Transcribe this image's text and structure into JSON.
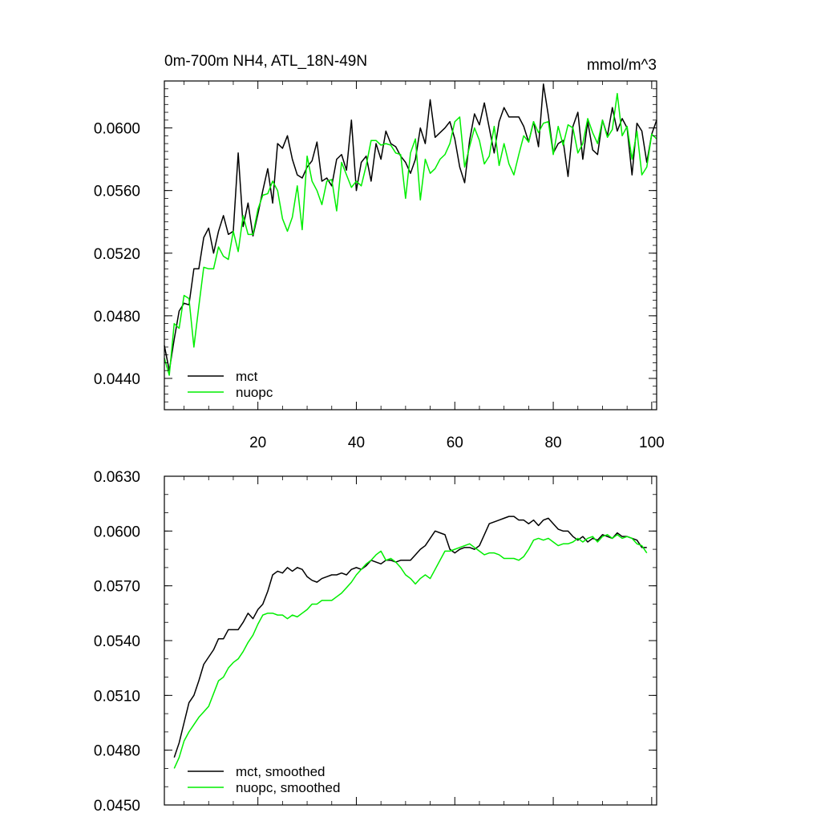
{
  "chart_data": [
    {
      "type": "line",
      "title": "0m-700m NH4, ATL_18N-49N",
      "units": "mmol/m^3",
      "xlim": [
        1,
        101
      ],
      "ylim": [
        0.042,
        0.063
      ],
      "x_ticks": [
        "20",
        "40",
        "60",
        "80",
        "100"
      ],
      "y_ticks": [
        "0.0440",
        "0.0480",
        "0.0520",
        "0.0560",
        "0.0600"
      ],
      "legend": "bottom-left",
      "series": [
        {
          "name": "mct",
          "color": "#000000",
          "x_start": 1,
          "values": [
            0.0461,
            0.0445,
            0.0465,
            0.0483,
            0.0488,
            0.0487,
            0.051,
            0.051,
            0.053,
            0.0536,
            0.052,
            0.0534,
            0.0544,
            0.0532,
            0.0534,
            0.0584,
            0.0537,
            0.0552,
            0.0531,
            0.0545,
            0.056,
            0.0574,
            0.0552,
            0.059,
            0.0587,
            0.0595,
            0.058,
            0.057,
            0.0568,
            0.0575,
            0.0579,
            0.0591,
            0.0566,
            0.0568,
            0.0563,
            0.058,
            0.0583,
            0.0573,
            0.0605,
            0.056,
            0.0578,
            0.0582,
            0.0566,
            0.059,
            0.058,
            0.0598,
            0.059,
            0.0588,
            0.0582,
            0.0578,
            0.0571,
            0.058,
            0.06,
            0.059,
            0.0618,
            0.0594,
            0.0597,
            0.06,
            0.0604,
            0.0593,
            0.0575,
            0.0565,
            0.0592,
            0.0609,
            0.0602,
            0.0616,
            0.06,
            0.0584,
            0.0604,
            0.0613,
            0.0607,
            0.0607,
            0.0607,
            0.0601,
            0.0591,
            0.0604,
            0.0588,
            0.0628,
            0.0608,
            0.0584,
            0.059,
            0.0592,
            0.0569,
            0.0601,
            0.061,
            0.058,
            0.0604,
            0.0586,
            0.0583,
            0.0605,
            0.0595,
            0.0613,
            0.0598,
            0.0606,
            0.06,
            0.057,
            0.0603,
            0.0598,
            0.0578,
            0.0596,
            0.0605
          ]
        },
        {
          "name": "nuopc",
          "color": "#00ee00",
          "x_start": 1,
          "values": [
            0.0453,
            0.0442,
            0.0475,
            0.0472,
            0.0493,
            0.0491,
            0.046,
            0.0486,
            0.0511,
            0.051,
            0.051,
            0.0524,
            0.0518,
            0.0516,
            0.0534,
            0.0521,
            0.0544,
            0.0532,
            0.0532,
            0.0548,
            0.0557,
            0.0558,
            0.0566,
            0.056,
            0.0542,
            0.0534,
            0.0543,
            0.0563,
            0.0535,
            0.0582,
            0.0566,
            0.056,
            0.0551,
            0.0566,
            0.0567,
            0.0547,
            0.0578,
            0.057,
            0.0562,
            0.0566,
            0.0563,
            0.0576,
            0.0592,
            0.0592,
            0.0589,
            0.059,
            0.0589,
            0.0584,
            0.0583,
            0.0555,
            0.0584,
            0.0593,
            0.0554,
            0.058,
            0.0571,
            0.0574,
            0.058,
            0.0583,
            0.059,
            0.0604,
            0.0607,
            0.0575,
            0.0588,
            0.06,
            0.0592,
            0.0577,
            0.0582,
            0.0601,
            0.0576,
            0.059,
            0.0577,
            0.057,
            0.0583,
            0.0595,
            0.0591,
            0.0604,
            0.0597,
            0.0603,
            0.0604,
            0.0583,
            0.0601,
            0.0589,
            0.0602,
            0.06,
            0.0584,
            0.059,
            0.0606,
            0.0597,
            0.059,
            0.0605,
            0.0594,
            0.0599,
            0.0622,
            0.0595,
            0.0601,
            0.058,
            0.0598,
            0.057,
            0.0575,
            0.0596,
            0.0593
          ]
        }
      ]
    },
    {
      "type": "line",
      "title": "",
      "xlim": [
        1,
        101
      ],
      "ylim": [
        0.045,
        0.063
      ],
      "y_ticks": [
        "0.0450",
        "0.0480",
        "0.0510",
        "0.0540",
        "0.0570",
        "0.0600",
        "0.0630"
      ],
      "legend": "bottom-left",
      "series": [
        {
          "name": "mct, smoothed",
          "color": "#000000",
          "x_start": 3,
          "values": [
            0.0476,
            0.0484,
            0.0495,
            0.0506,
            0.051,
            0.0518,
            0.0527,
            0.0531,
            0.0535,
            0.0541,
            0.0541,
            0.0546,
            0.0546,
            0.0546,
            0.055,
            0.0555,
            0.0552,
            0.0557,
            0.056,
            0.0567,
            0.0576,
            0.0578,
            0.0577,
            0.058,
            0.0578,
            0.058,
            0.0579,
            0.0575,
            0.0573,
            0.0572,
            0.0574,
            0.0575,
            0.0576,
            0.0576,
            0.0577,
            0.0576,
            0.0579,
            0.058,
            0.0579,
            0.0581,
            0.0584,
            0.0583,
            0.0582,
            0.0584,
            0.0584,
            0.0583,
            0.0584,
            0.0584,
            0.0584,
            0.0587,
            0.059,
            0.0592,
            0.0596,
            0.06,
            0.0599,
            0.0598,
            0.059,
            0.0588,
            0.059,
            0.0591,
            0.0591,
            0.059,
            0.0592,
            0.0598,
            0.0604,
            0.0605,
            0.0606,
            0.0607,
            0.0608,
            0.0608,
            0.0606,
            0.0606,
            0.0604,
            0.0606,
            0.0603,
            0.0606,
            0.0607,
            0.0604,
            0.0601,
            0.06,
            0.06,
            0.0597,
            0.0595,
            0.0597,
            0.0594,
            0.0596,
            0.0595,
            0.0598,
            0.0597,
            0.0596,
            0.0599,
            0.0597,
            0.0597,
            0.0596,
            0.0595,
            0.0591,
            0.0591
          ]
        },
        {
          "name": "nuopc, smoothed",
          "color": "#00ee00",
          "x_start": 3,
          "values": [
            0.047,
            0.0476,
            0.0485,
            0.049,
            0.0494,
            0.0498,
            0.0501,
            0.0504,
            0.0511,
            0.0518,
            0.052,
            0.0525,
            0.0528,
            0.053,
            0.0534,
            0.0539,
            0.0543,
            0.0549,
            0.0554,
            0.0555,
            0.0555,
            0.0554,
            0.0554,
            0.0552,
            0.0554,
            0.0553,
            0.0555,
            0.0557,
            0.056,
            0.056,
            0.0562,
            0.0562,
            0.0562,
            0.0564,
            0.0566,
            0.0569,
            0.0572,
            0.0576,
            0.0579,
            0.0582,
            0.0584,
            0.0587,
            0.0589,
            0.0584,
            0.0585,
            0.0583,
            0.058,
            0.0576,
            0.0574,
            0.0571,
            0.0574,
            0.0576,
            0.0574,
            0.0579,
            0.0584,
            0.0589,
            0.0589,
            0.059,
            0.0591,
            0.0592,
            0.0593,
            0.0591,
            0.0589,
            0.0587,
            0.0588,
            0.0588,
            0.0587,
            0.0585,
            0.0585,
            0.0585,
            0.0584,
            0.0586,
            0.059,
            0.0595,
            0.0596,
            0.0595,
            0.0596,
            0.0594,
            0.0592,
            0.0593,
            0.0593,
            0.0594,
            0.0596,
            0.0594,
            0.0596,
            0.0597,
            0.0594,
            0.0597,
            0.0598,
            0.0596,
            0.0598,
            0.0596,
            0.0597,
            0.0596,
            0.0593,
            0.0592,
            0.0588
          ]
        }
      ]
    }
  ]
}
